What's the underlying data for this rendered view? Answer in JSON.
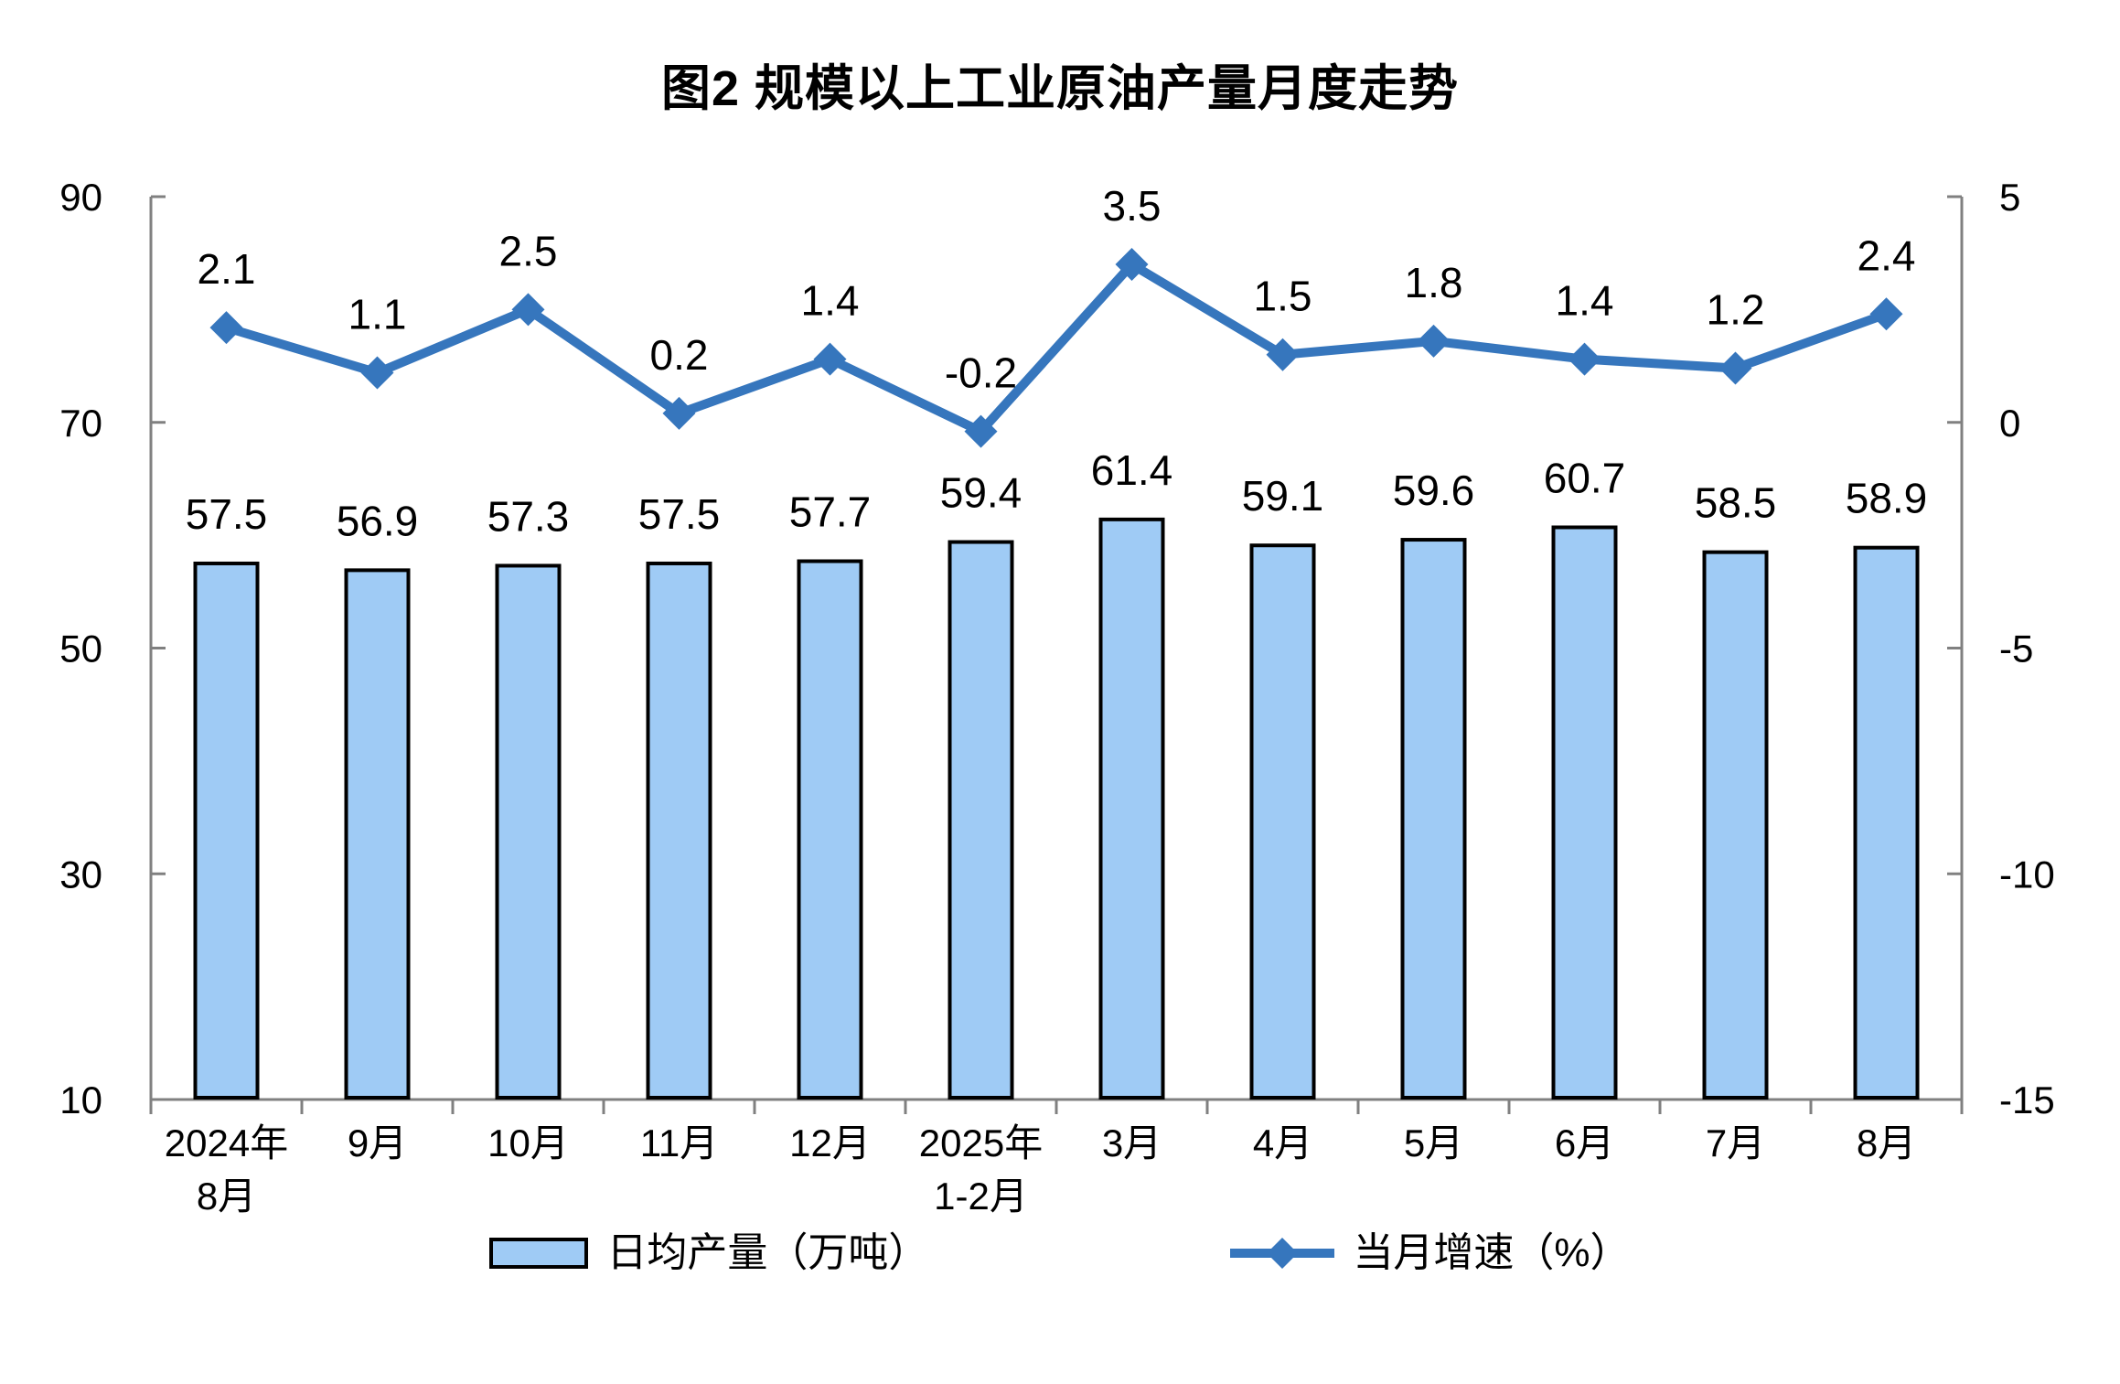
{
  "chart_data": {
    "type": "combo-bar-line",
    "title": "图2 规模以上工业原油产量月度走势",
    "categories": [
      [
        "2024年",
        "8月"
      ],
      [
        "9月"
      ],
      [
        "10月"
      ],
      [
        "11月"
      ],
      [
        "12月"
      ],
      [
        "2025年",
        "1-2月"
      ],
      [
        "3月"
      ],
      [
        "4月"
      ],
      [
        "5月"
      ],
      [
        "6月"
      ],
      [
        "7月"
      ],
      [
        "8月"
      ]
    ],
    "series": [
      {
        "name": "日均产量（万吨）",
        "type": "bar",
        "axis": "left",
        "values": [
          57.5,
          56.9,
          57.3,
          57.5,
          57.7,
          59.4,
          61.4,
          59.1,
          59.6,
          60.7,
          58.5,
          58.9
        ],
        "fill_color": "#9FCBF5",
        "border_color": "#000000"
      },
      {
        "name": "当月增速（%）",
        "type": "line",
        "axis": "right",
        "values": [
          2.1,
          1.1,
          2.5,
          0.2,
          1.4,
          -0.2,
          3.5,
          1.5,
          1.8,
          1.4,
          1.2,
          2.4
        ],
        "color": "#3676BD",
        "marker": "diamond"
      }
    ],
    "left_axis": {
      "min": 10,
      "max": 90,
      "ticks": [
        90,
        70,
        50,
        30,
        10
      ]
    },
    "right_axis": {
      "min": -15,
      "max": 5,
      "ticks": [
        5,
        0,
        -5,
        -10,
        -15
      ]
    },
    "axis_color": "#808080",
    "grid": false,
    "legend_position": "bottom"
  }
}
